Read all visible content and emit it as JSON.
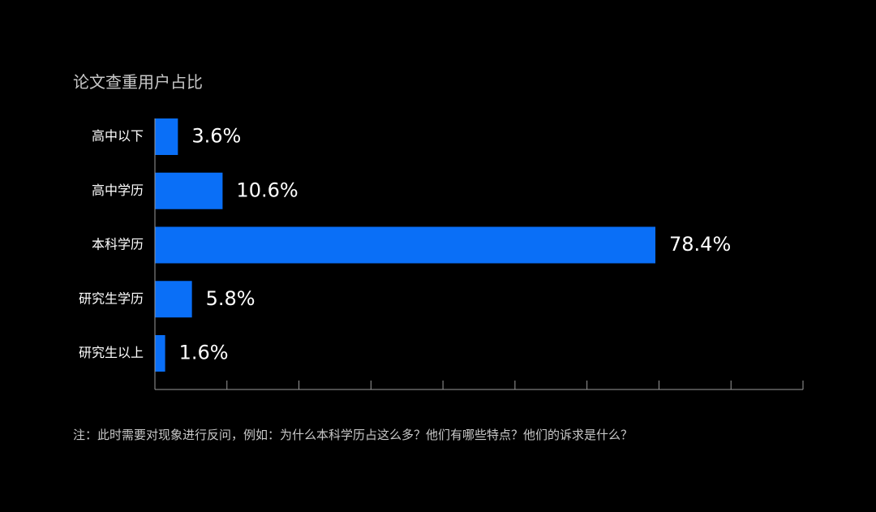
{
  "chart_data": {
    "type": "bar",
    "orientation": "horizontal",
    "title": "论文查重用户占比",
    "categories": [
      "高中以下",
      "高中学历",
      "本科学历",
      "研究生学历",
      "研究生以上"
    ],
    "values": [
      3.6,
      10.6,
      78.4,
      5.8,
      1.6
    ],
    "value_labels": [
      "3.6%",
      "10.6%",
      "78.4%",
      "5.8%",
      "1.6%"
    ],
    "xlim": [
      0,
      90
    ],
    "x_ticks": [
      0,
      10,
      20,
      30,
      40,
      50,
      60,
      70,
      80,
      90
    ],
    "bar_color": "#0a6ff7",
    "grid": false,
    "legend": "none"
  },
  "footnote": "注：此时需要对现象进行反问，例如：为什么本科学历占这么多？他们有哪些特点？他们的诉求是什么？",
  "colors": {
    "background": "#000000",
    "bar": "#0a6ff7",
    "text": "#ffffff",
    "muted_text": "#c8c8c8",
    "axis": "#9a9a9a"
  }
}
